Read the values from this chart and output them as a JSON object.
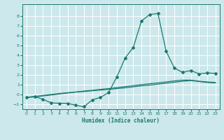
{
  "xlabel": "Humidex (Indice chaleur)",
  "xlim": [
    -0.5,
    23.5
  ],
  "ylim": [
    -1.5,
    9.2
  ],
  "xticks": [
    0,
    1,
    2,
    3,
    4,
    5,
    6,
    7,
    8,
    9,
    10,
    11,
    12,
    13,
    14,
    15,
    16,
    17,
    18,
    19,
    20,
    21,
    22,
    23
  ],
  "yticks": [
    -1,
    0,
    1,
    2,
    3,
    4,
    5,
    6,
    7,
    8
  ],
  "bg_color": "#cce8ec",
  "grid_color": "#ffffff",
  "line_color": "#1a7a6e",
  "line1_x": [
    0,
    1,
    2,
    3,
    4,
    5,
    6,
    7,
    8,
    9,
    10,
    11,
    12,
    13,
    14,
    15,
    16,
    17,
    18,
    19,
    20,
    21,
    22,
    23
  ],
  "line1_y": [
    -0.3,
    -0.25,
    -0.15,
    -0.05,
    0.05,
    0.15,
    0.25,
    0.35,
    0.42,
    0.52,
    0.6,
    0.7,
    0.8,
    0.9,
    1.0,
    1.1,
    1.18,
    1.28,
    1.38,
    1.46,
    1.46,
    1.35,
    1.28,
    1.22
  ],
  "line2_x": [
    0,
    1,
    2,
    3,
    4,
    5,
    6,
    7,
    8,
    9,
    10,
    11,
    12,
    13,
    14,
    15,
    16,
    17,
    18,
    19,
    20,
    21,
    22,
    23
  ],
  "line2_y": [
    -0.3,
    -0.2,
    -0.5,
    -0.85,
    -0.9,
    -0.9,
    -1.1,
    -1.25,
    -0.55,
    -0.3,
    0.2,
    1.8,
    3.7,
    4.8,
    7.5,
    8.15,
    8.25,
    4.4,
    2.7,
    2.25,
    2.45,
    2.1,
    2.2,
    2.15
  ],
  "line3_x": [
    0,
    1,
    2,
    3,
    4,
    5,
    6,
    7,
    8,
    9,
    10,
    11,
    12,
    13,
    14,
    15,
    16,
    17,
    18,
    19,
    20,
    21,
    22,
    23
  ],
  "line3_y": [
    -0.3,
    -0.2,
    -0.1,
    0.0,
    0.1,
    0.18,
    0.25,
    0.3,
    0.38,
    0.45,
    0.52,
    0.6,
    0.68,
    0.78,
    0.88,
    0.96,
    1.05,
    1.15,
    1.25,
    1.35,
    1.42,
    1.32,
    1.22,
    1.18
  ]
}
